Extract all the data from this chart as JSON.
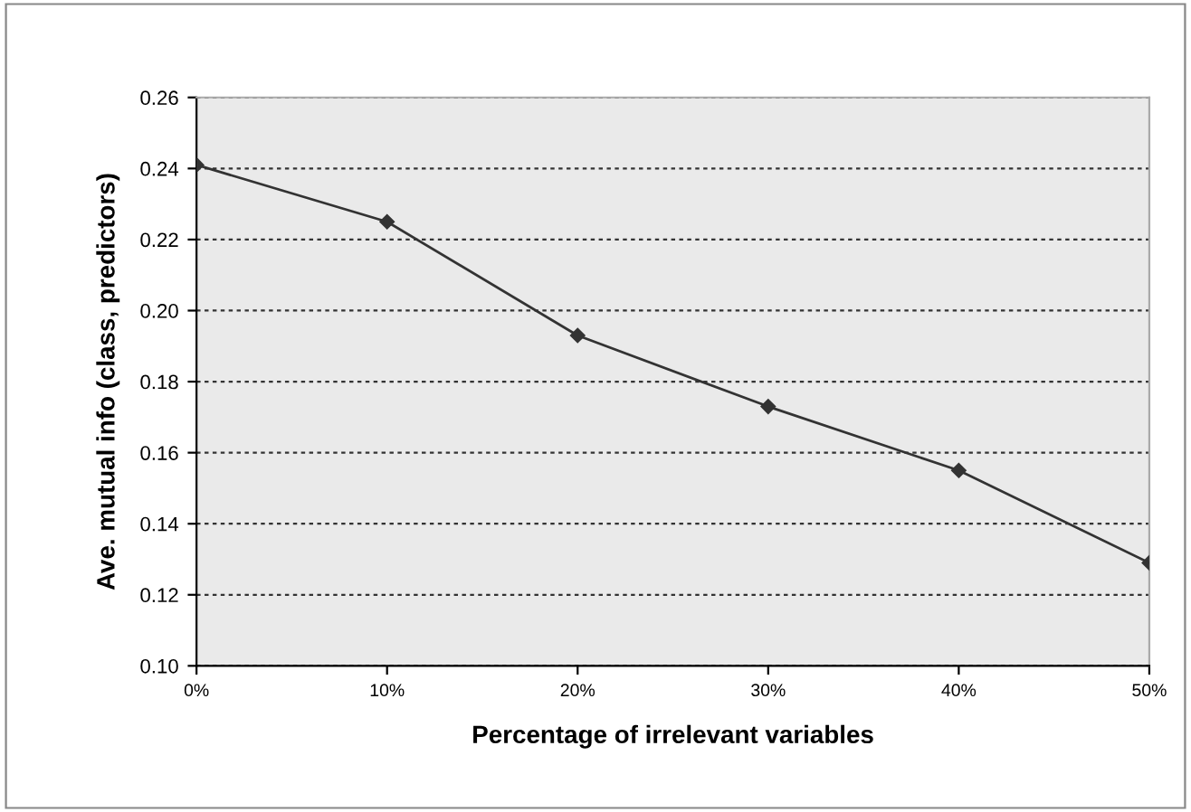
{
  "chart_data": {
    "type": "line",
    "xlabel": "Percentage of irrelevant variables",
    "ylabel": "Ave. mutual info (class, predictors)",
    "x": [
      0,
      10,
      20,
      30,
      40,
      50
    ],
    "series": [
      {
        "color": "#333333",
        "values": [
          0.241,
          0.225,
          0.193,
          0.173,
          0.155,
          0.129
        ]
      }
    ],
    "xlim": [
      0,
      50
    ],
    "xticks": [
      {
        "value": 0,
        "label": "0%"
      },
      {
        "value": 10,
        "label": "10%"
      },
      {
        "value": 20,
        "label": "20%"
      },
      {
        "value": 30,
        "label": "30%"
      },
      {
        "value": 40,
        "label": "40%"
      },
      {
        "value": 50,
        "label": "50%"
      }
    ],
    "ylim": [
      0.1,
      0.26
    ],
    "yticks": [
      {
        "value": 0.1,
        "label": "0.10"
      },
      {
        "value": 0.12,
        "label": "0.12"
      },
      {
        "value": 0.14,
        "label": "0.14"
      },
      {
        "value": 0.16,
        "label": "0.16"
      },
      {
        "value": 0.18,
        "label": "0.18"
      },
      {
        "value": 0.2,
        "label": "0.20"
      },
      {
        "value": 0.22,
        "label": "0.22"
      },
      {
        "value": 0.24,
        "label": "0.24"
      },
      {
        "value": 0.26,
        "label": "0.26"
      }
    ],
    "grid": "y",
    "marker": "diamond",
    "line_style": "solid"
  }
}
